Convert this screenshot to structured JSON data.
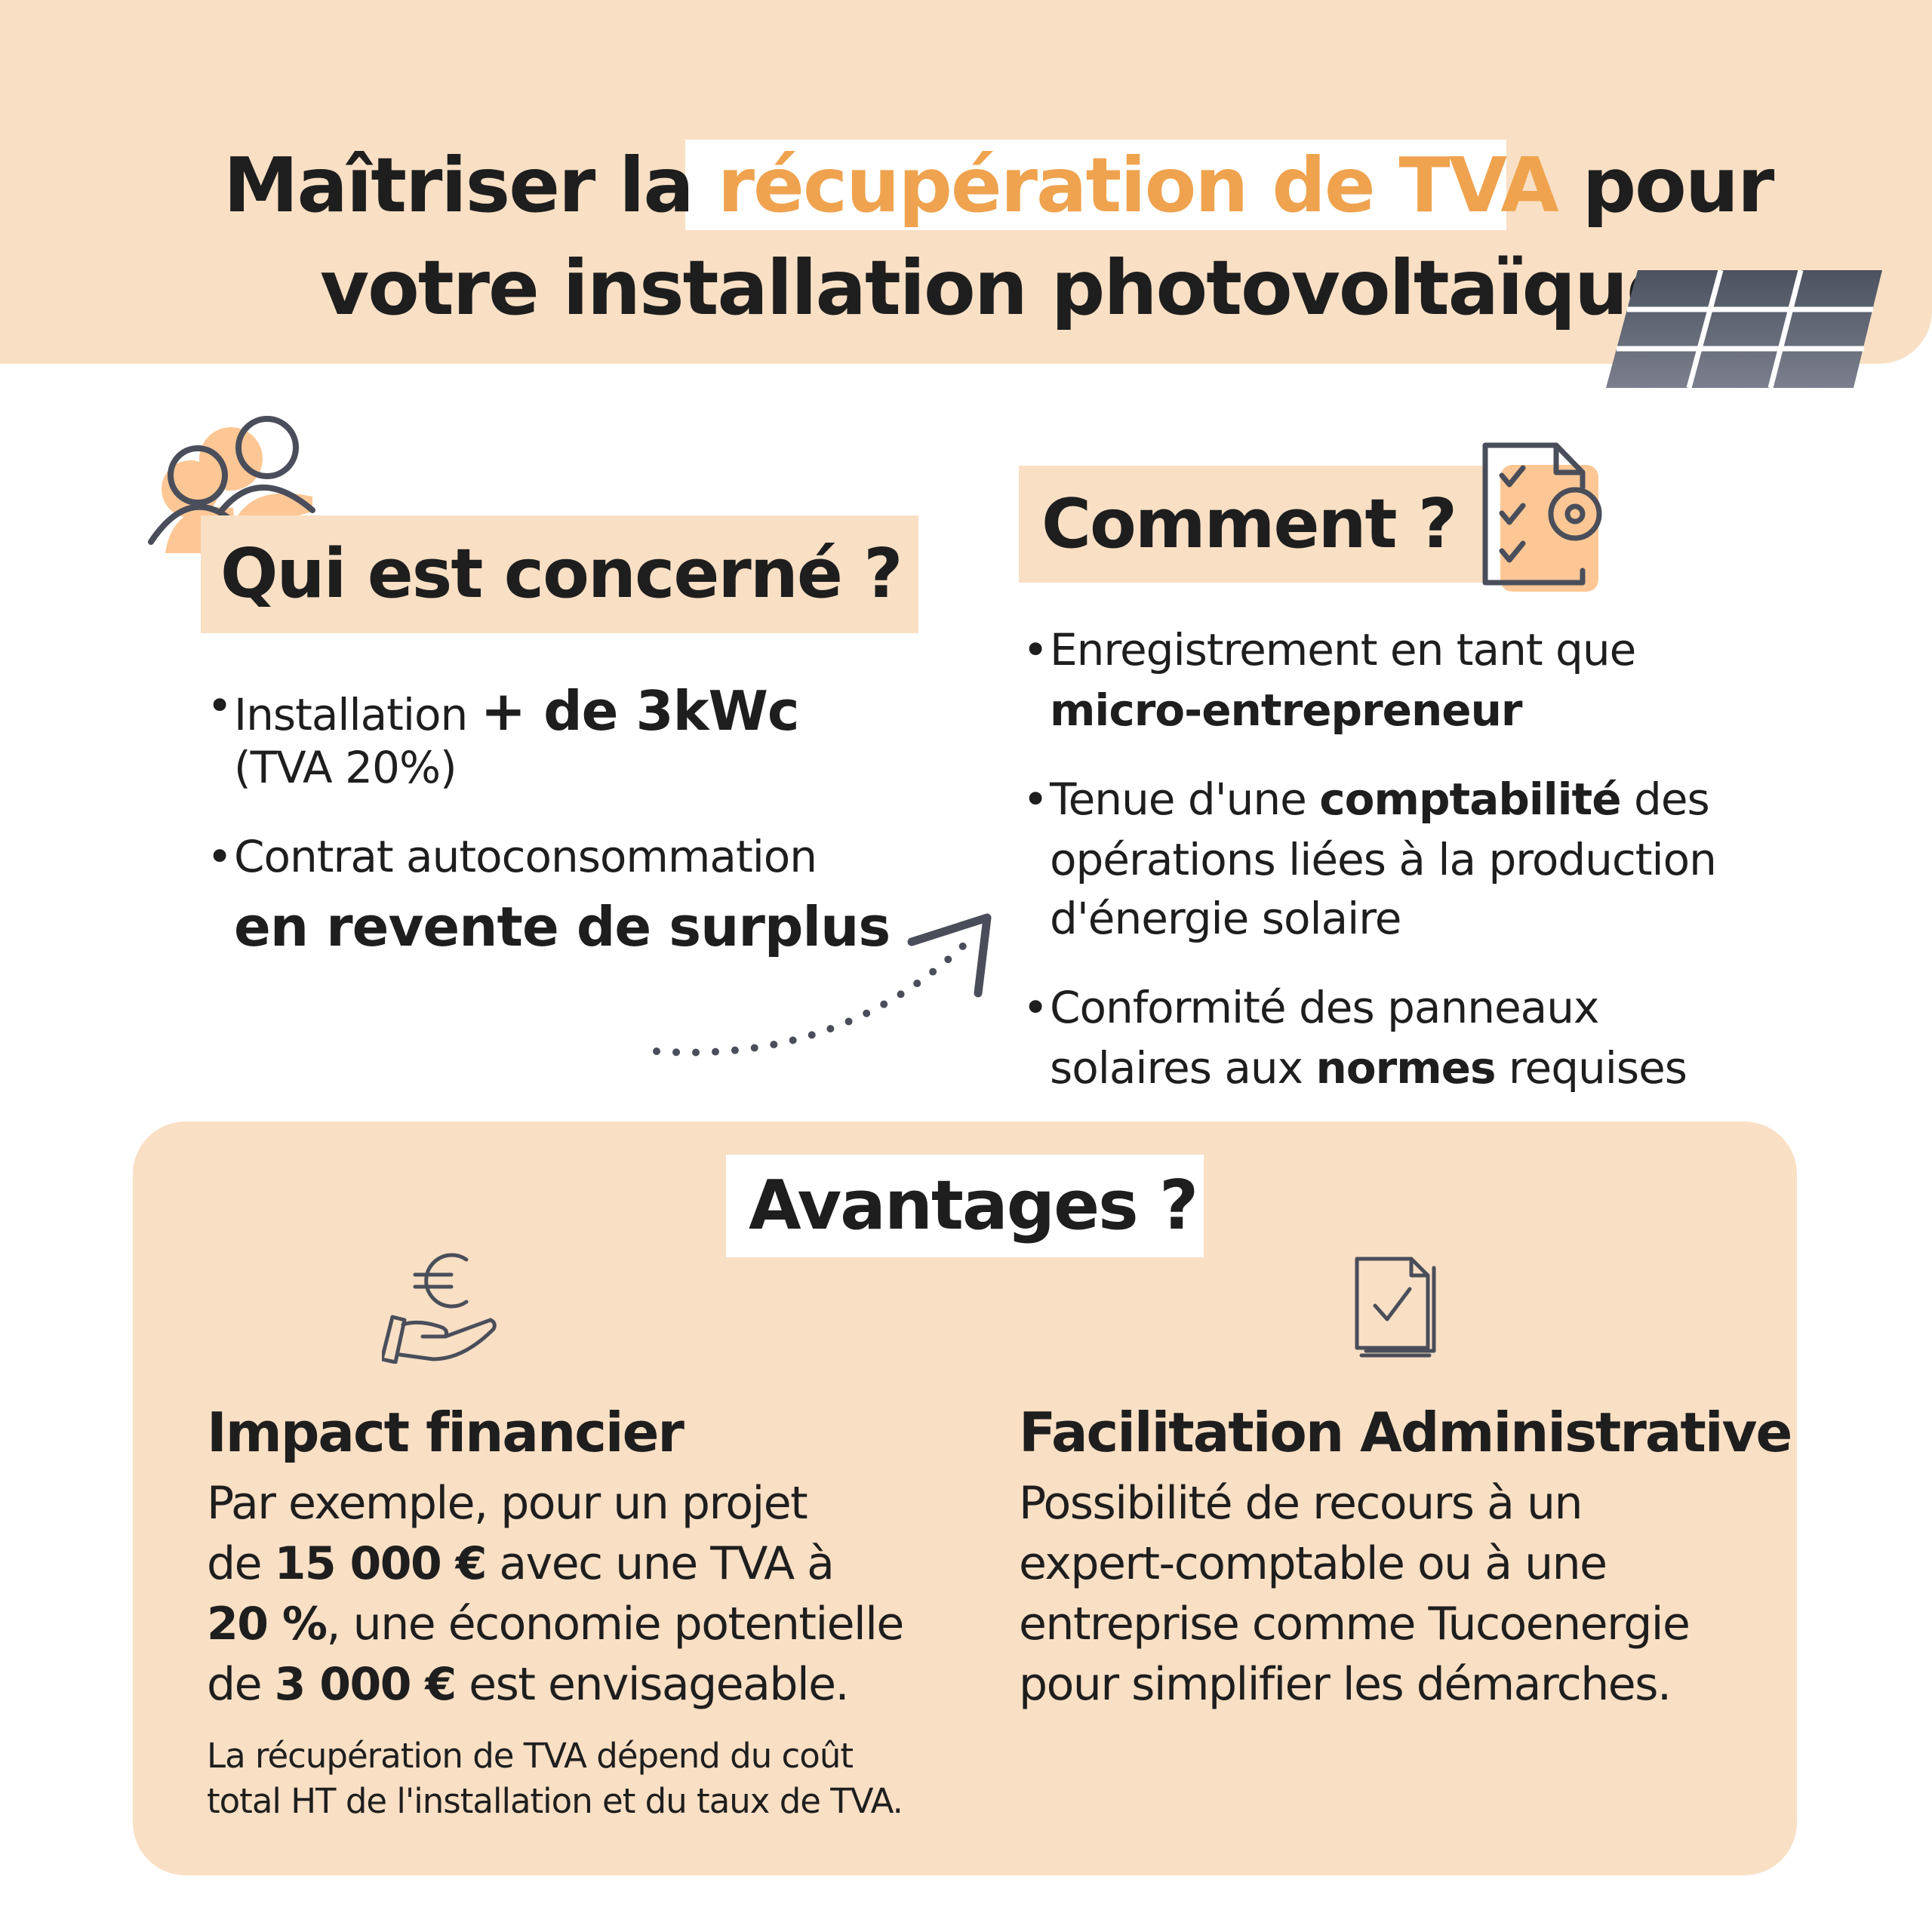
{
  "colors": {
    "peach": "#F9DFC4",
    "accent": "#EFA34F",
    "icon_gray": "#4A4E5A",
    "icon_fill": "#FCC795",
    "text": "#1E1E1E"
  },
  "title": {
    "part1": "Maîtriser la ",
    "highlight": "récupération de TVA",
    "part2": " pour",
    "line2": "votre installation photovoltaïque"
  },
  "who": {
    "heading": "Qui est concerné ?",
    "icon": "people-icon",
    "b1": {
      "text": "Installation ",
      "bold": "+ de 3kWc",
      "line2": "(TVA 20%)"
    },
    "b2": {
      "text": "Contrat autoconsommation",
      "bold": "en revente de surplus"
    }
  },
  "how": {
    "heading": "Comment ?",
    "icon": "checklist-gear-icon",
    "b1": {
      "line1": "Enregistrement en tant que",
      "bold": "micro-entrepreneur"
    },
    "b2": {
      "pre": "Tenue d'une ",
      "bold": "comptabilité",
      "post": " des",
      "line2": "opérations liées à la production",
      "line3": "d'énergie solaire"
    },
    "b3": {
      "line1": "Conformité des panneaux",
      "pre": "solaires aux ",
      "bold": "normes",
      "post": " requises"
    }
  },
  "advantages": {
    "heading": "Avantages ?",
    "financial": {
      "icon": "euro-hand-icon",
      "title": "Impact financier",
      "l1": "Par exemple, pour un projet",
      "l2a": "de ",
      "l2b": "15 000 €",
      "l2c": " avec une TVA à",
      "l3a": "20 %",
      "l3b": ", une économie potentielle",
      "l4a": "de ",
      "l4b": "3 000 €",
      "l4c": " est envisageable.",
      "note1": "La récupération de TVA dépend du coût",
      "note2": "total HT de l'installation et du taux de TVA."
    },
    "admin": {
      "icon": "document-check-icon",
      "title": "Facilitation Administrative",
      "l1": "Possibilité de recours à un",
      "l2": "expert-comptable ou à une",
      "l3": "entreprise comme Tucoenergie",
      "l4": "pour simplifier les démarches."
    }
  }
}
